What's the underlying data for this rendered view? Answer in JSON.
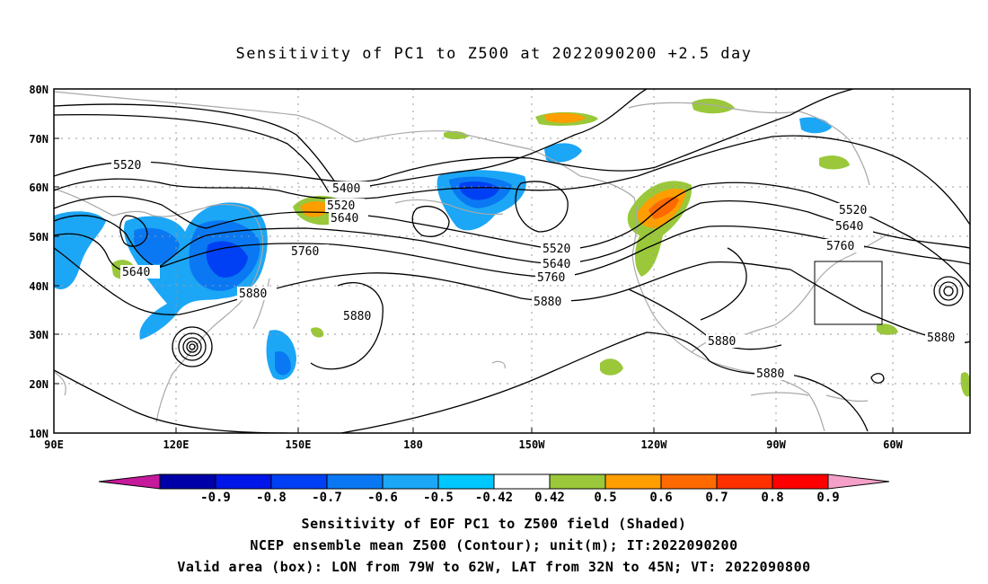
{
  "title": "Sensitivity of PC1 to Z500 at 2022090200 +2.5 day",
  "lat_labels": [
    "80N",
    "70N",
    "60N",
    "50N",
    "40N",
    "30N",
    "20N",
    "10N"
  ],
  "lon_labels": [
    "90E",
    "120E",
    "150E",
    "180",
    "150W",
    "120W",
    "90W",
    "60W"
  ],
  "contour_labels": [
    "5520",
    "5400",
    "5520",
    "5640",
    "5640",
    "5760",
    "5880",
    "5880",
    "5520",
    "5640",
    "5760",
    "5880",
    "5520",
    "5640",
    "5760",
    "5880",
    "5880",
    "5880"
  ],
  "colorbar": {
    "ticks": [
      "-0.9",
      "-0.8",
      "-0.7",
      "-0.6",
      "-0.5",
      "-0.42",
      "0.42",
      "0.5",
      "0.6",
      "0.7",
      "0.8",
      "0.9"
    ],
    "colors": {
      "below": "#c61a9c",
      "bins": [
        "#0000a8",
        "#0016e8",
        "#0040f4",
        "#0a78f2",
        "#1ca6f6",
        "#00c8ff",
        "#ffffff",
        "#9ac83a",
        "#ff9e00",
        "#ff6a00",
        "#ff3000",
        "#ff0000"
      ],
      "above": "#f4a0c8"
    }
  },
  "valid_box": {
    "lon_west": -79,
    "lon_east": -62,
    "lat_south": 32,
    "lat_north": 45
  },
  "caption": {
    "line1": "Sensitivity of EOF PC1 to Z500 field (Shaded)",
    "line2": "NCEP ensemble mean Z500 (Contour); unit(m); IT:2022090200",
    "line3": "Valid area (box): LON from 79W to 62W, LAT from 32N to 45N; VT: 2022090800"
  }
}
